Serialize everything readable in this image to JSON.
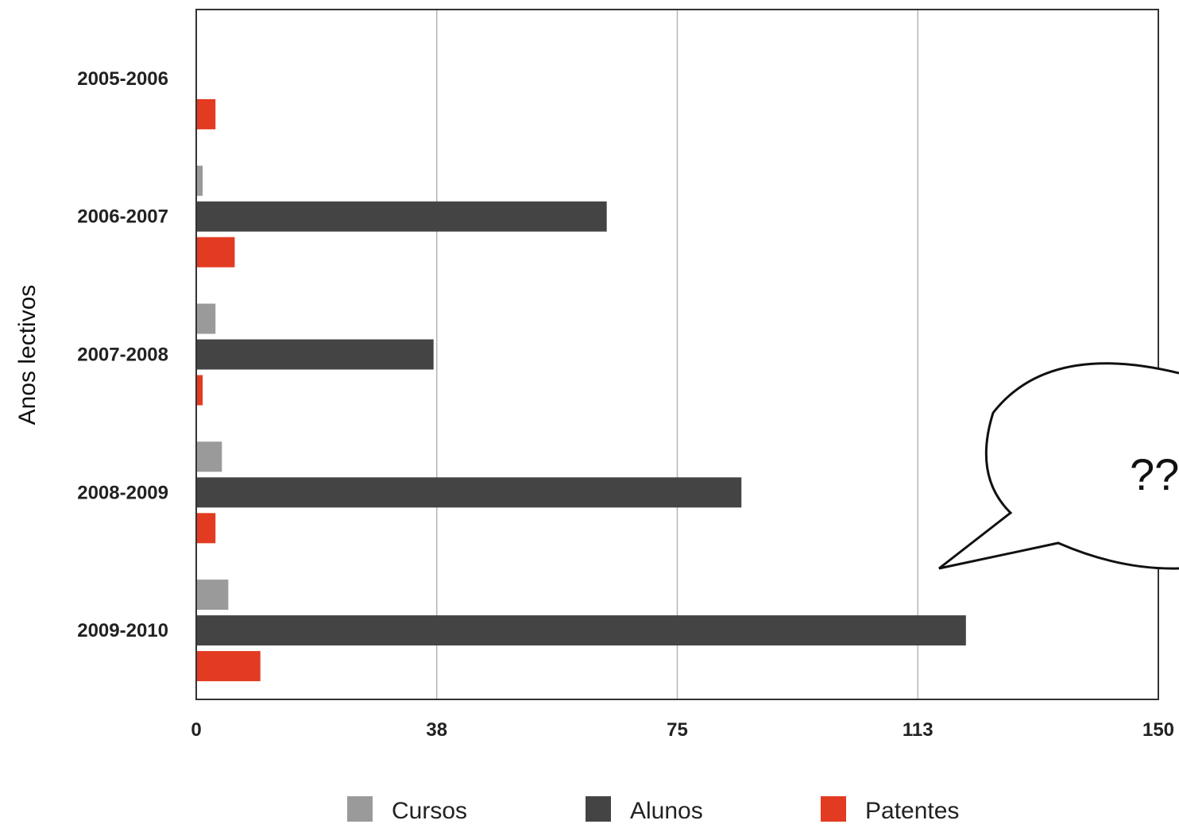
{
  "chart_data": {
    "type": "bar",
    "orientation": "horizontal",
    "ylabel": "Anos lectivos",
    "xlabel": "",
    "xlim": [
      0,
      150
    ],
    "xticks": [
      "0",
      "38",
      "75",
      "113",
      "150"
    ],
    "xtick_values": [
      0,
      37.5,
      75,
      112.5,
      150
    ],
    "grid": true,
    "legend_position": "bottom",
    "categories": [
      "2005-2006",
      "2006-2007",
      "2007-2008",
      "2008-2009",
      "2009-2010"
    ],
    "series": [
      {
        "name": "Cursos",
        "color": "#9a9a9a",
        "values": [
          0,
          1,
          3,
          4,
          5
        ]
      },
      {
        "name": "Alunos",
        "color": "#444444",
        "values": [
          0,
          64,
          37,
          85,
          120
        ]
      },
      {
        "name": "Patentes",
        "color": "#e23b22",
        "values": [
          3,
          6,
          1,
          3,
          10
        ]
      }
    ]
  },
  "callout": {
    "text": "??"
  }
}
